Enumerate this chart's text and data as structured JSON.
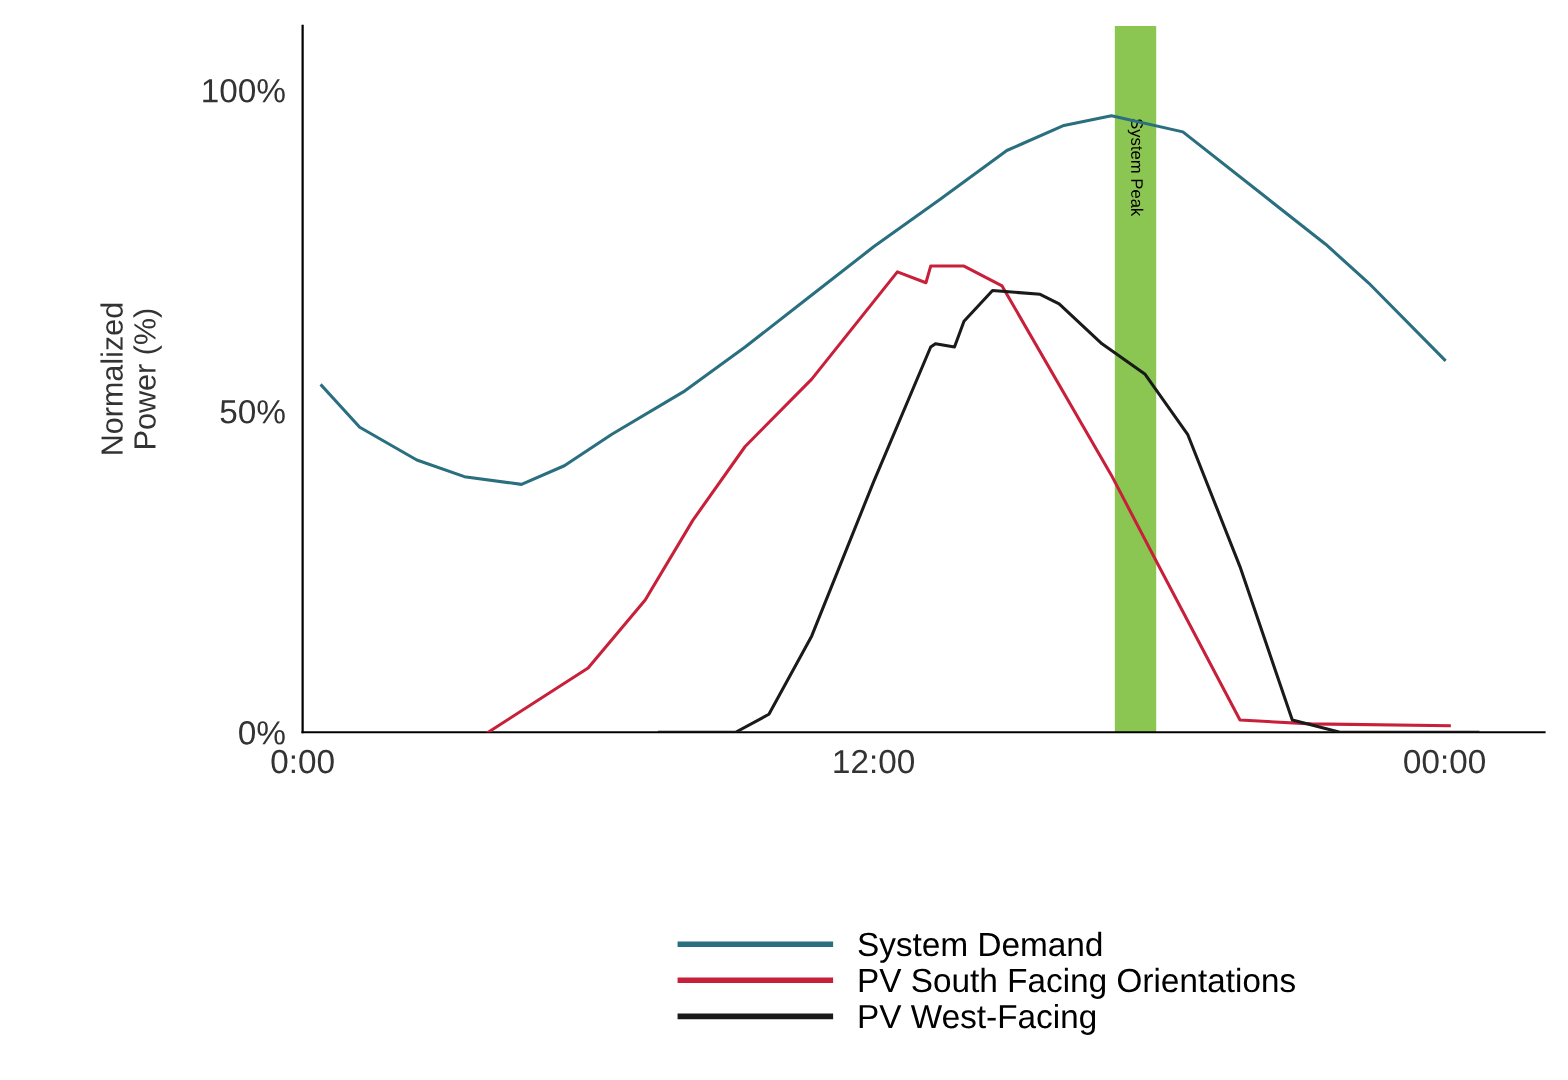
{
  "chart_data": {
    "type": "line",
    "ylabel": "Normalized\nPower (%)",
    "xlim": [
      0,
      26.1
    ],
    "ylim": [
      0,
      110
    ],
    "xticks": [
      {
        "value": 0,
        "label": "0:00"
      },
      {
        "value": 12,
        "label": "12:00"
      },
      {
        "value": 24,
        "label": "00:00"
      }
    ],
    "yticks": [
      {
        "value": 0,
        "label": "0%"
      },
      {
        "value": 50,
        "label": "50%"
      },
      {
        "value": 100,
        "label": "100%"
      }
    ],
    "grid": false,
    "legend": "bottom",
    "marker": "none",
    "line_style": "solid",
    "bands": [
      {
        "axis": "x",
        "from": 17.07,
        "to": 17.94,
        "label": "System Peak",
        "color": "#8cc652"
      }
    ],
    "series": [
      {
        "name": "System Demand",
        "color": "#2a6f7f",
        "x": [
          0.4,
          1.2,
          2.4,
          3.4,
          4.6,
          5.5,
          6.5,
          8.0,
          9.3,
          10.6,
          12.0,
          13.4,
          14.8,
          16.0,
          17.0,
          18.5,
          20.3,
          21.5,
          22.4,
          24.0
        ],
        "values": [
          54,
          47.5,
          42.4,
          39.8,
          38.6,
          41.5,
          46.4,
          53,
          60,
          67.5,
          75.6,
          83,
          90.6,
          94.5,
          96,
          93.5,
          83,
          76,
          70,
          58
        ]
      },
      {
        "name": "PV South Facing Orientations",
        "color": "#c8203a",
        "x": [
          3.9,
          6.0,
          7.2,
          8.2,
          9.3,
          10.7,
          12.5,
          13.1,
          13.2,
          13.9,
          14.7,
          17.0,
          18.0,
          19.7,
          21.2,
          24.1
        ],
        "values": [
          0,
          10,
          20.6,
          33,
          44.5,
          55,
          71.7,
          70,
          72.6,
          72.6,
          69.5,
          40,
          25.8,
          1.9,
          1.3,
          1
        ]
      },
      {
        "name": "PV West-Facing",
        "color": "#1a1a1a",
        "x": [
          7.5,
          9.1,
          9.8,
          10.7,
          12.0,
          13.2,
          13.3,
          13.7,
          13.9,
          14.5,
          15.5,
          15.9,
          16.8,
          17.7,
          18.6,
          19.7,
          20.8,
          21.8,
          24.7
        ],
        "values": [
          0,
          0,
          2.8,
          15,
          39,
          60,
          60.5,
          60,
          64,
          68.8,
          68.2,
          66.7,
          60.5,
          55.8,
          46.4,
          25.8,
          1.9,
          0,
          0
        ]
      }
    ]
  }
}
